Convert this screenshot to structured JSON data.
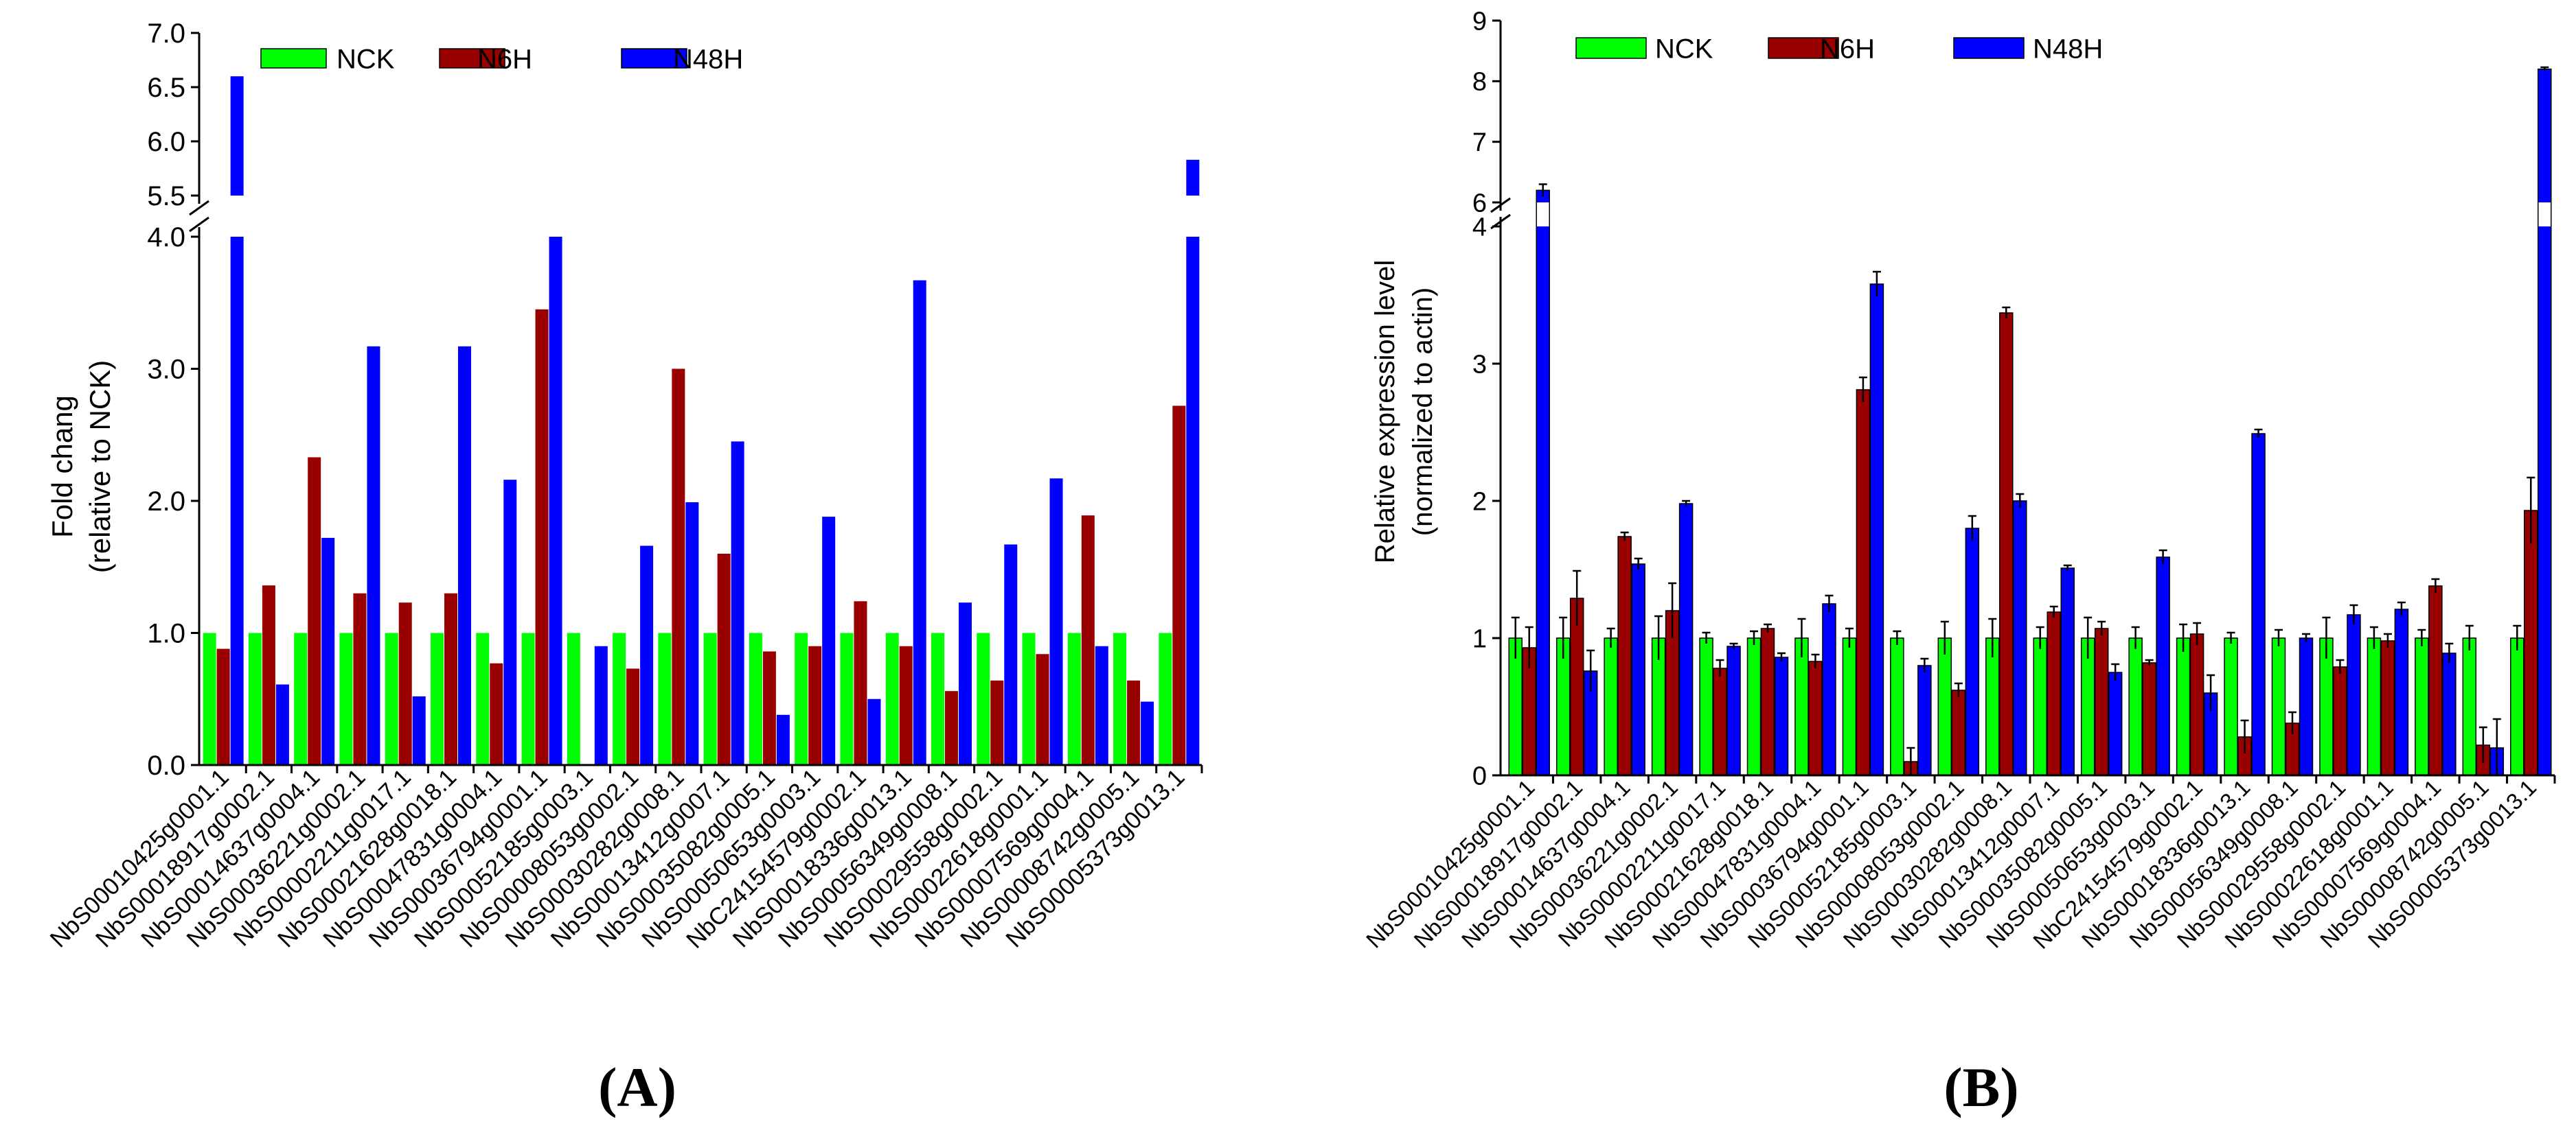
{
  "chart_data": [
    {
      "type": "bar",
      "panel_label": "(A)",
      "ylabel": [
        "Fold chang",
        "(relative to NCK)"
      ],
      "axis_break": {
        "lower_range": [
          0,
          4.0
        ],
        "upper_range": [
          5.5,
          7.0
        ]
      },
      "lower_ticks": [
        "0.0",
        "1.0",
        "2.0",
        "3.0",
        "4.0"
      ],
      "upper_ticks": [
        "5.5",
        "6.0",
        "6.5",
        "7.0"
      ],
      "legend_position": "top",
      "colors": {
        "NCK": "#00ff00",
        "N6H": "#990000",
        "N48H": "#0000ff"
      },
      "categories": [
        "NbS00010425g0001.1",
        "NbS00018917g0002.1",
        "NbS00014637g0004.1",
        "NbS00036221g0002.1",
        "NbS00002211g0017.1",
        "NbS00021628g0018.1",
        "NbS00047831g0004.1",
        "NbS00036794g0001.1",
        "NbS00052185g0003.1",
        "NbS00008053g0002.1",
        "NbS00030282g0008.1",
        "NbS00013412g0007.1",
        "NbS00035082g0005.1",
        "NbS00050653g0003.1",
        "NbC24154579g0002.1",
        "NbS00018336g0013.1",
        "NbS00056349g0008.1",
        "NbS00029558g0002.1",
        "NbS00022618g0001.1",
        "NbS00007569g0004.1",
        "NbS00008742g0005.1",
        "NbS00005373g0013.1"
      ],
      "series": [
        {
          "name": "NCK",
          "values": [
            1,
            1,
            1,
            1,
            1,
            1,
            1,
            1,
            1,
            1,
            1,
            1,
            1,
            1,
            1,
            1,
            1,
            1,
            1,
            1,
            1,
            1
          ]
        },
        {
          "name": "N6H",
          "values": [
            0.88,
            1.36,
            2.33,
            1.3,
            1.23,
            1.3,
            0.77,
            3.45,
            0,
            0.73,
            3.0,
            1.6,
            0.86,
            0.9,
            1.24,
            0.9,
            0.56,
            0.64,
            0.84,
            1.89,
            0.64,
            2.72
          ]
        },
        {
          "name": "N48H",
          "values": [
            6.6,
            0.61,
            1.72,
            3.17,
            0.52,
            3.17,
            2.16,
            4.0,
            0.9,
            1.66,
            1.99,
            2.45,
            0.38,
            1.88,
            0.5,
            3.67,
            1.23,
            1.67,
            2.17,
            0.9,
            0.48,
            5.83
          ]
        }
      ]
    },
    {
      "type": "bar",
      "panel_label": "(B)",
      "ylabel": [
        "Relative expression level",
        "(normalized to actin)"
      ],
      "axis_break": {
        "lower_range": [
          0,
          4
        ],
        "upper_range": [
          6,
          9
        ]
      },
      "lower_ticks": [
        "0",
        "1",
        "2",
        "3",
        "4"
      ],
      "upper_ticks": [
        "6",
        "7",
        "8",
        "9"
      ],
      "legend_position": "top",
      "error_bars": true,
      "colors": {
        "NCK": "#00ff00",
        "N6H": "#990000",
        "N48H": "#0000ff"
      },
      "categories": [
        "NbS00010425g0001.1",
        "NbS00018917g0002.1",
        "NbS00014637g0004.1",
        "NbS00036221g0002.1",
        "NbS00002211g0017.1",
        "NbS00021628g0018.1",
        "NbS00047831g0004.1",
        "NbS00036794g0001.1",
        "NbS00052185g0003.1",
        "NbS00008053g0002.1",
        "NbS00030282g0008.1",
        "NbS00013412g0007.1",
        "NbS00035082g0005.1",
        "NbS00050653g0003.1",
        "NbC24154579g0002.1",
        "NbS00018336g0013.1",
        "NbS00056349g0008.1",
        "NbS00029558g0002.1",
        "NbS00022618g0001.1",
        "NbS00007569g0004.1",
        "NbS00008742g0005.1",
        "NbS00005373g0013.1"
      ],
      "series": [
        {
          "name": "NCK",
          "values": [
            1,
            1,
            1,
            1,
            1,
            1,
            1,
            1,
            1,
            1,
            1,
            1,
            1,
            1,
            1,
            1,
            1,
            1,
            1,
            1,
            1,
            1
          ],
          "errors": [
            0.15,
            0.15,
            0.07,
            0.16,
            0.04,
            0.05,
            0.14,
            0.07,
            0.05,
            0.12,
            0.14,
            0.08,
            0.15,
            0.08,
            0.1,
            0.04,
            0.06,
            0.15,
            0.08,
            0.06,
            0.09,
            0.09
          ]
        },
        {
          "name": "N6H",
          "values": [
            0.93,
            1.29,
            1.74,
            1.2,
            0.78,
            1.07,
            0.83,
            2.81,
            0.1,
            0.62,
            3.37,
            1.19,
            1.07,
            0.82,
            1.03,
            0.28,
            0.38,
            0.79,
            0.98,
            1.38,
            0.22,
            1.93
          ],
          "errors": [
            0.15,
            0.2,
            0.03,
            0.2,
            0.06,
            0.03,
            0.05,
            0.09,
            0.1,
            0.05,
            0.04,
            0.04,
            0.05,
            0.02,
            0.08,
            0.12,
            0.08,
            0.05,
            0.05,
            0.05,
            0.13,
            0.24
          ]
        },
        {
          "name": "N48H",
          "values": [
            6.2,
            0.76,
            1.54,
            1.98,
            0.94,
            0.86,
            1.25,
            3.58,
            0.8,
            1.8,
            2.0,
            1.51,
            0.75,
            1.59,
            0.6,
            2.49,
            1.0,
            1.17,
            1.21,
            0.89,
            0.2,
            8.2
          ],
          "errors": [
            0.1,
            0.15,
            0.04,
            0.02,
            0.02,
            0.03,
            0.06,
            0.09,
            0.05,
            0.09,
            0.05,
            0.02,
            0.06,
            0.05,
            0.13,
            0.03,
            0.03,
            0.07,
            0.05,
            0.07,
            0.21,
            0.03
          ]
        }
      ]
    }
  ]
}
